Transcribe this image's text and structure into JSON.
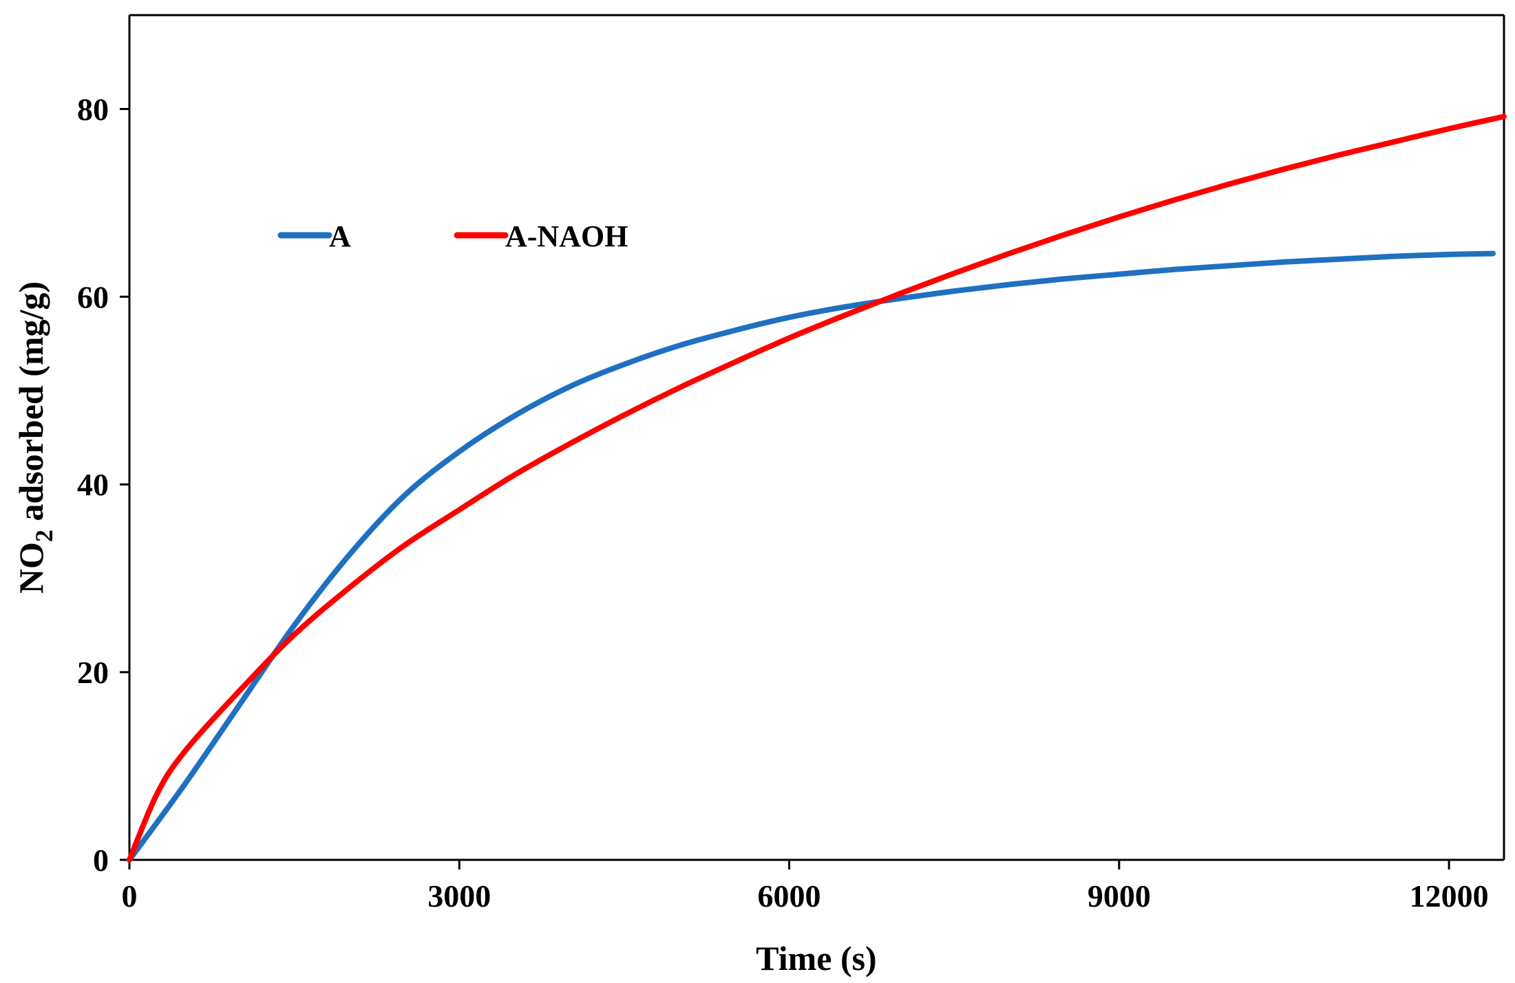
{
  "chart_data": {
    "type": "line",
    "title": "",
    "xlabel": "Time (s)",
    "ylabel": "NO2 adsorbed (mg/g)",
    "ylabel_parts": {
      "main": "NO",
      "subscript": "2",
      "rest": " adsorbed (mg/g)"
    },
    "xlim": [
      0,
      12500
    ],
    "ylim": [
      0,
      90
    ],
    "x_ticks": [
      0,
      3000,
      6000,
      9000,
      12000
    ],
    "x_tick_labels": [
      "0",
      "3000",
      "6000",
      "9000",
      "12000"
    ],
    "y_ticks": [
      0,
      20,
      40,
      60,
      80
    ],
    "y_tick_labels": [
      "0",
      "20",
      "40",
      "60",
      "80"
    ],
    "grid": false,
    "legend_position": "upper-left",
    "series": [
      {
        "name": "A",
        "color": "#1f70c1",
        "x": [
          0,
          500,
          1000,
          1500,
          2000,
          2500,
          3000,
          3500,
          4000,
          4500,
          5000,
          5500,
          6000,
          6500,
          7000,
          7500,
          8000,
          8500,
          9000,
          9500,
          10000,
          10500,
          11000,
          11500,
          12000,
          12400
        ],
        "values": [
          0,
          8,
          16.5,
          25,
          32.5,
          38.8,
          43.5,
          47.3,
          50.4,
          52.8,
          54.8,
          56.4,
          57.8,
          58.9,
          59.8,
          60.6,
          61.3,
          61.9,
          62.4,
          62.9,
          63.3,
          63.7,
          64.0,
          64.3,
          64.5,
          64.6
        ]
      },
      {
        "name": "A-NAOH",
        "color": "#ff0000",
        "x": [
          0,
          250,
          500,
          1000,
          1500,
          2000,
          2500,
          3000,
          3500,
          4000,
          4500,
          5000,
          5500,
          6000,
          6500,
          7000,
          7500,
          8000,
          8500,
          9000,
          9500,
          10000,
          10500,
          11000,
          11500,
          12000,
          12500
        ],
        "values": [
          0,
          7,
          11.5,
          18,
          24,
          29,
          33.5,
          37.3,
          41,
          44.3,
          47.4,
          50.3,
          53,
          55.6,
          58,
          60.3,
          62.5,
          64.6,
          66.6,
          68.5,
          70.3,
          72.0,
          73.6,
          75.1,
          76.5,
          77.9,
          79.2
        ]
      }
    ]
  }
}
